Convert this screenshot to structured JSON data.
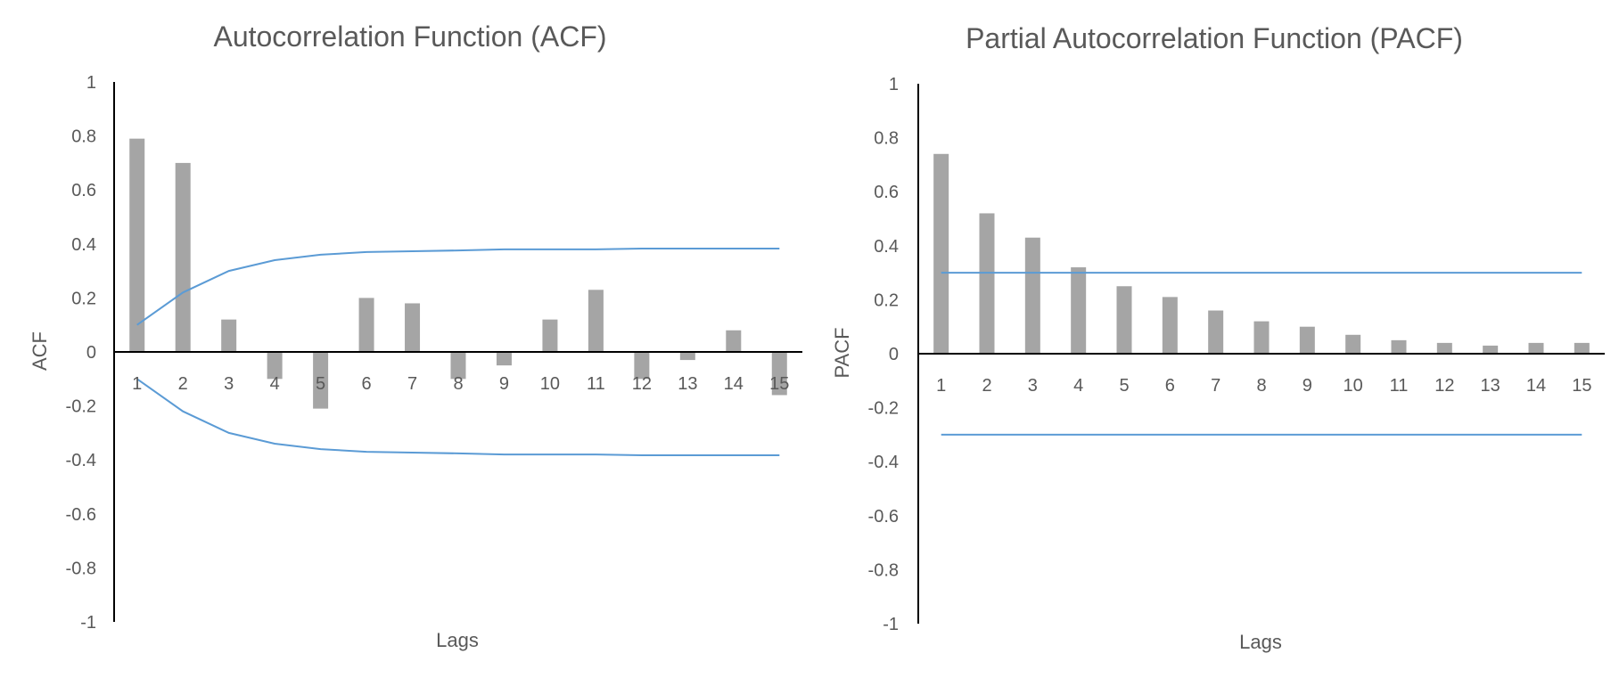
{
  "chart_data": [
    {
      "type": "bar",
      "title": "Autocorrelation Function (ACF)",
      "xlabel": "Lags",
      "ylabel": "ACF",
      "categories": [
        "1",
        "2",
        "3",
        "4",
        "5",
        "6",
        "7",
        "8",
        "9",
        "10",
        "11",
        "12",
        "13",
        "14",
        "15"
      ],
      "series": [
        {
          "type": "bar",
          "values": [
            0.79,
            0.7,
            0.12,
            -0.1,
            -0.21,
            0.2,
            0.18,
            -0.1,
            -0.05,
            0.12,
            0.23,
            -0.1,
            -0.03,
            0.08,
            -0.16
          ]
        },
        {
          "type": "line",
          "values": [
            0.1,
            0.22,
            0.3,
            0.34,
            0.36,
            0.37,
            0.373,
            0.376,
            0.38,
            0.38,
            0.38,
            0.383,
            0.383,
            0.383,
            0.383
          ]
        },
        {
          "type": "line",
          "values": [
            -0.1,
            -0.22,
            -0.3,
            -0.34,
            -0.36,
            -0.37,
            -0.373,
            -0.376,
            -0.38,
            -0.38,
            -0.38,
            -0.383,
            -0.383,
            -0.383,
            -0.383
          ]
        }
      ],
      "ylim": [
        -1,
        1
      ],
      "yticks": [
        "1",
        "0.8",
        "0.6",
        "0.4",
        "0.2",
        "0",
        "-0.2",
        "-0.4",
        "-0.6",
        "-0.8",
        "-1"
      ],
      "grid": false,
      "legend": "none",
      "colors": {
        "bar": "#a5a5a5",
        "line": "#5b9bd5",
        "axis": "#000000",
        "text": "#595959"
      }
    },
    {
      "type": "bar",
      "title": "Partial Autocorrelation Function (PACF)",
      "xlabel": "Lags",
      "ylabel": "PACF",
      "categories": [
        "1",
        "2",
        "3",
        "4",
        "5",
        "6",
        "7",
        "8",
        "9",
        "10",
        "11",
        "12",
        "13",
        "14",
        "15"
      ],
      "series": [
        {
          "type": "bar",
          "values": [
            0.74,
            0.52,
            0.43,
            0.32,
            0.25,
            0.21,
            0.16,
            0.12,
            0.1,
            0.07,
            0.05,
            0.04,
            0.03,
            0.04,
            0.04
          ]
        },
        {
          "type": "line",
          "values": [
            0.3,
            0.3,
            0.3,
            0.3,
            0.3,
            0.3,
            0.3,
            0.3,
            0.3,
            0.3,
            0.3,
            0.3,
            0.3,
            0.3,
            0.3
          ]
        },
        {
          "type": "line",
          "values": [
            -0.3,
            -0.3,
            -0.3,
            -0.3,
            -0.3,
            -0.3,
            -0.3,
            -0.3,
            -0.3,
            -0.3,
            -0.3,
            -0.3,
            -0.3,
            -0.3,
            -0.3
          ]
        }
      ],
      "ylim": [
        -1,
        1
      ],
      "yticks": [
        "1",
        "0.8",
        "0.6",
        "0.4",
        "0.2",
        "0",
        "-0.2",
        "-0.4",
        "-0.6",
        "-0.8",
        "-1"
      ],
      "grid": false,
      "legend": "none",
      "colors": {
        "bar": "#a5a5a5",
        "line": "#5b9bd5",
        "axis": "#000000",
        "text": "#595959"
      }
    }
  ]
}
